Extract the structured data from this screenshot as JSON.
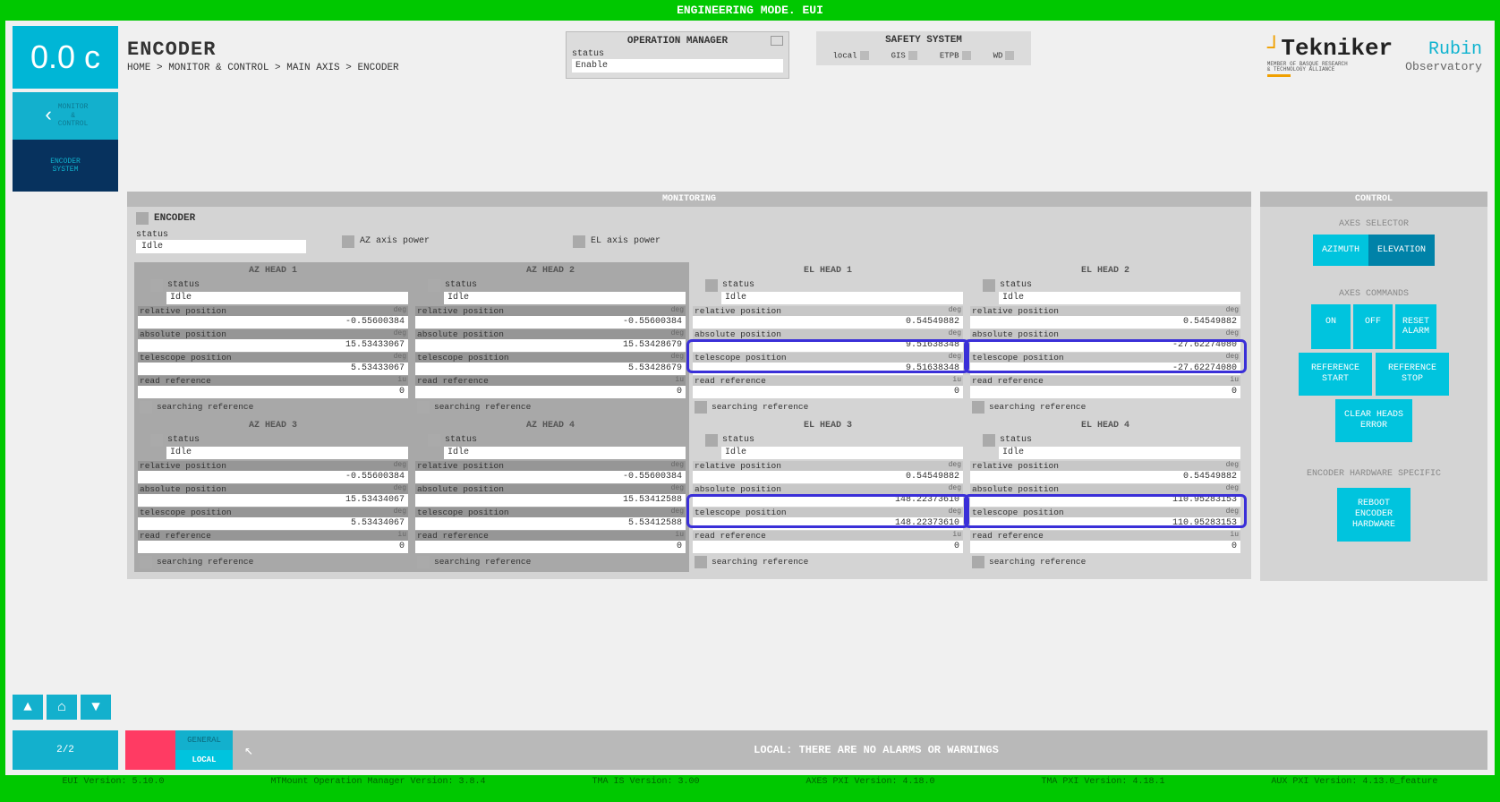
{
  "banner": "ENGINEERING MODE. EUI",
  "sidebar": {
    "bignum": "0.0 c",
    "back_label": "MONITOR\n&\nCONTROL",
    "current_label": "ENCODER\nSYSTEM"
  },
  "header": {
    "title": "ENCODER",
    "crumb": "HOME > MONITOR & CONTROL > MAIN AXIS > ENCODER"
  },
  "opmgr": {
    "title": "OPERATION MANAGER",
    "status_label": "status",
    "status_value": "Enable"
  },
  "safety": {
    "title": "SAFETY SYSTEM",
    "i1": "local",
    "i2": "GIS",
    "i3": "ETPB",
    "i4": "WD"
  },
  "logos": {
    "tekniker": "Tekniker",
    "tek_sub": "MEMBER OF BASQUE RESEARCH\n& TECHNOLOGY ALLIANCE",
    "rubin_a": "Rubin",
    "rubin_b": "Observatory"
  },
  "monitor": {
    "panel_title": "MONITORING",
    "encoder_label": "ENCODER",
    "status_label": "status",
    "status_value": "Idle",
    "az_power": "AZ axis power",
    "el_power": "EL axis power",
    "field_labels": {
      "status": "status",
      "rel": "relative position",
      "abs": "absolute position",
      "tele": "telescope position",
      "readref": "read reference",
      "search": "searching reference",
      "deg": "deg",
      "iu": "iu"
    },
    "heads": [
      {
        "title": "AZ HEAD 1",
        "dim": true,
        "status": "Idle",
        "rel": "-0.55600384",
        "abs": "15.53433067",
        "tele": "5.53433067",
        "readref": "0"
      },
      {
        "title": "AZ HEAD 2",
        "dim": true,
        "status": "Idle",
        "rel": "-0.55600384",
        "abs": "15.53428679",
        "tele": "5.53428679",
        "readref": "0"
      },
      {
        "title": "EL HEAD 1",
        "dim": false,
        "status": "Idle",
        "rel": "0.54549882",
        "abs": "9.51638348",
        "tele": "9.51638348",
        "readref": "0",
        "hl": true
      },
      {
        "title": "EL HEAD 2",
        "dim": false,
        "status": "Idle",
        "rel": "0.54549882",
        "abs": "-27.62274080",
        "tele": "-27.62274080",
        "readref": "0",
        "hl": true
      },
      {
        "title": "AZ HEAD 3",
        "dim": true,
        "status": "Idle",
        "rel": "-0.55600384",
        "abs": "15.53434067",
        "tele": "5.53434067",
        "readref": "0"
      },
      {
        "title": "AZ HEAD 4",
        "dim": true,
        "status": "Idle",
        "rel": "-0.55600384",
        "abs": "15.53412588",
        "tele": "5.53412588",
        "readref": "0"
      },
      {
        "title": "EL HEAD 3",
        "dim": false,
        "status": "Idle",
        "rel": "0.54549882",
        "abs": "148.22373610",
        "tele": "148.22373610",
        "readref": "0",
        "hl": true
      },
      {
        "title": "EL HEAD 4",
        "dim": false,
        "status": "Idle",
        "rel": "0.54549882",
        "abs": "110.95283153",
        "tele": "110.95283153",
        "readref": "0",
        "hl": true
      }
    ]
  },
  "control": {
    "panel_title": "CONTROL",
    "sec1": "AXES SELECTOR",
    "azimuth": "AZIMUTH",
    "elevation": "ELEVATION",
    "sec2": "AXES COMMANDS",
    "on": "ON",
    "off": "OFF",
    "reset": "RESET\nALARM",
    "refstart": "REFERENCE\nSTART",
    "refstop": "REFERENCE\nSTOP",
    "clear": "CLEAR HEADS\nERROR",
    "sec3": "ENCODER HARDWARE SPECIFIC",
    "reboot": "REBOOT\nENCODER\nHARDWARE"
  },
  "footer": {
    "page": "2/2",
    "tab_general": "GENERAL",
    "tab_local": "LOCAL",
    "msg": "LOCAL: THERE ARE NO ALARMS OR WARNINGS"
  },
  "versions": {
    "v1": "EUI Version: 5.10.0",
    "v2": "MTMount Operation Manager Version: 3.8.4",
    "v3": "TMA IS Version: 3.00",
    "v4": "AXES PXI Version: 4.18.0",
    "v5": "TMA PXI Version: 4.18.1",
    "v6": "AUX PXI Version: 4.13.0_feature"
  }
}
